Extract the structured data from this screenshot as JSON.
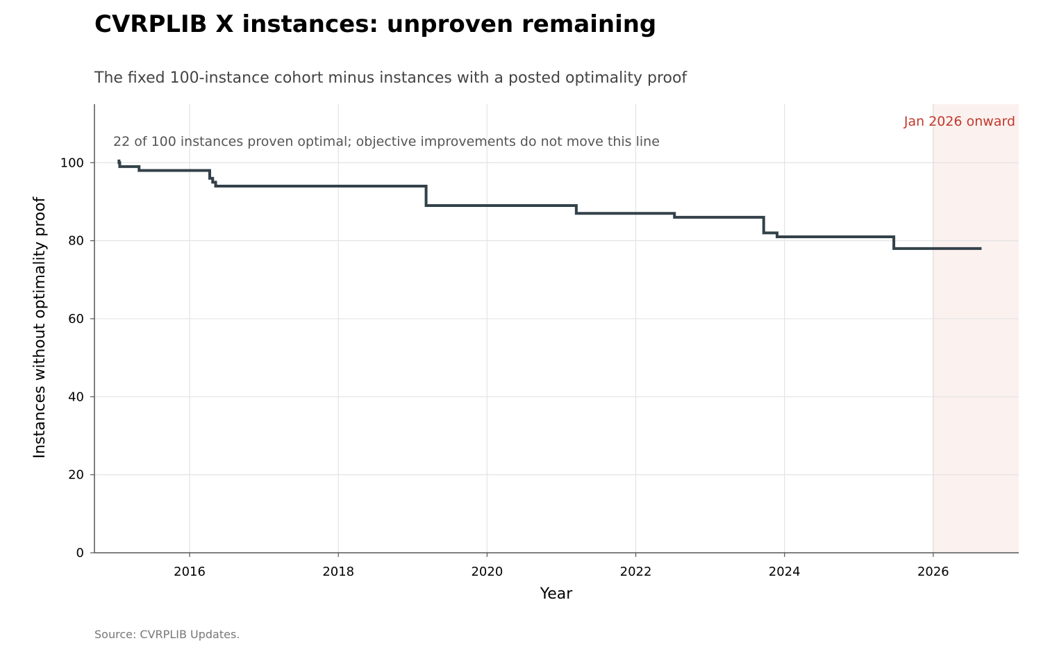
{
  "chart_data": {
    "type": "line",
    "title": "CVRPLIB X instances: unproven remaining",
    "subtitle": "The fixed 100-instance cohort minus instances with a posted optimality proof",
    "xlabel": "Year",
    "ylabel": "Instances without optimality proof",
    "xlim": [
      2014.72,
      2027.15
    ],
    "ylim": [
      0,
      115
    ],
    "grid": true,
    "x_ticks": [
      2016,
      2018,
      2020,
      2022,
      2024,
      2026
    ],
    "x_tick_labels": [
      "2016",
      "2018",
      "2020",
      "2022",
      "2024",
      "2026"
    ],
    "y_ticks": [
      0,
      20,
      40,
      60,
      80,
      100
    ],
    "y_tick_labels": [
      "0",
      "20",
      "40",
      "60",
      "80",
      "100"
    ],
    "step": "post",
    "series": [
      {
        "x": [
          2015.05,
          2015.06,
          2015.32,
          2016.27,
          2016.31,
          2016.35,
          2019.18,
          2021.2,
          2022.52,
          2023.72,
          2023.9,
          2025.47,
          2026.65
        ],
        "y": [
          100,
          99,
          98,
          96,
          95,
          94,
          89,
          87,
          86,
          82,
          81,
          78,
          78
        ],
        "color": "#33414a"
      }
    ],
    "shaded_region": {
      "x_start": 2026.0,
      "label": "Jan 2026 onward",
      "color": "#c0392b",
      "fill": "#fbf1ef"
    },
    "annotation": "22 of 100 instances proven optimal; objective improvements do not move this line",
    "source": "Source: CVRPLIB Updates."
  }
}
